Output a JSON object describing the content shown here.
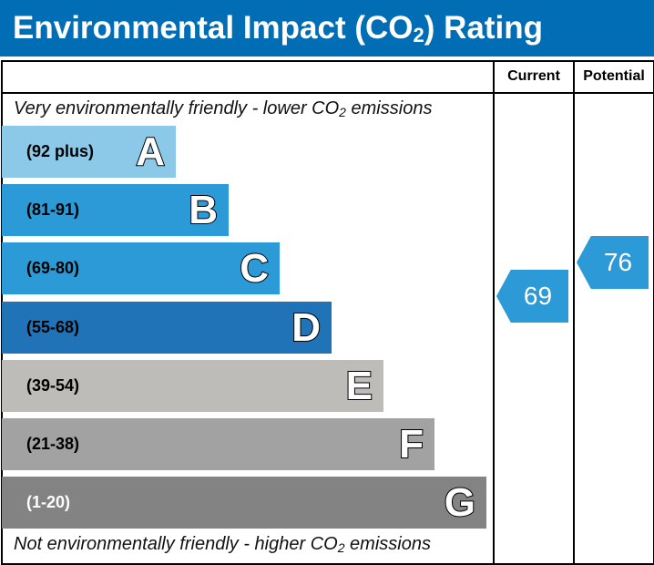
{
  "title": {
    "main": "Environmental Impact (CO",
    "sub": "2",
    "end": ") Rating"
  },
  "columns": {
    "current": "Current",
    "potential": "Potential"
  },
  "top_note": {
    "a": "Very environmentally friendly - lower CO",
    "sub": "2",
    "b": " emissions"
  },
  "bottom_note": {
    "a": "Not environmentally friendly - higher CO",
    "sub": "2",
    "b": " emissions"
  },
  "bands": [
    {
      "letter": "A",
      "range": "(92 plus)",
      "color": "#8cc8e8",
      "text_color": "#000"
    },
    {
      "letter": "B",
      "range": "(81-91)",
      "color": "#2b9ad6",
      "text_color": "#000"
    },
    {
      "letter": "C",
      "range": "(69-80)",
      "color": "#2b9ad6",
      "text_color": "#000"
    },
    {
      "letter": "D",
      "range": "(55-68)",
      "color": "#1f73b6",
      "text_color": "#000"
    },
    {
      "letter": "E",
      "range": "(39-54)",
      "color": "#bdbcb9",
      "text_color": "#000"
    },
    {
      "letter": "F",
      "range": "(21-38)",
      "color": "#a2a2a2",
      "text_color": "#000"
    },
    {
      "letter": "G",
      "range": "(1-20)",
      "color": "#838383",
      "text_color": "#fff"
    }
  ],
  "current": {
    "value": "69",
    "band": "C",
    "color": "#2b9ad6"
  },
  "potential": {
    "value": "76",
    "band": "C",
    "color": "#2b9ad6"
  }
}
